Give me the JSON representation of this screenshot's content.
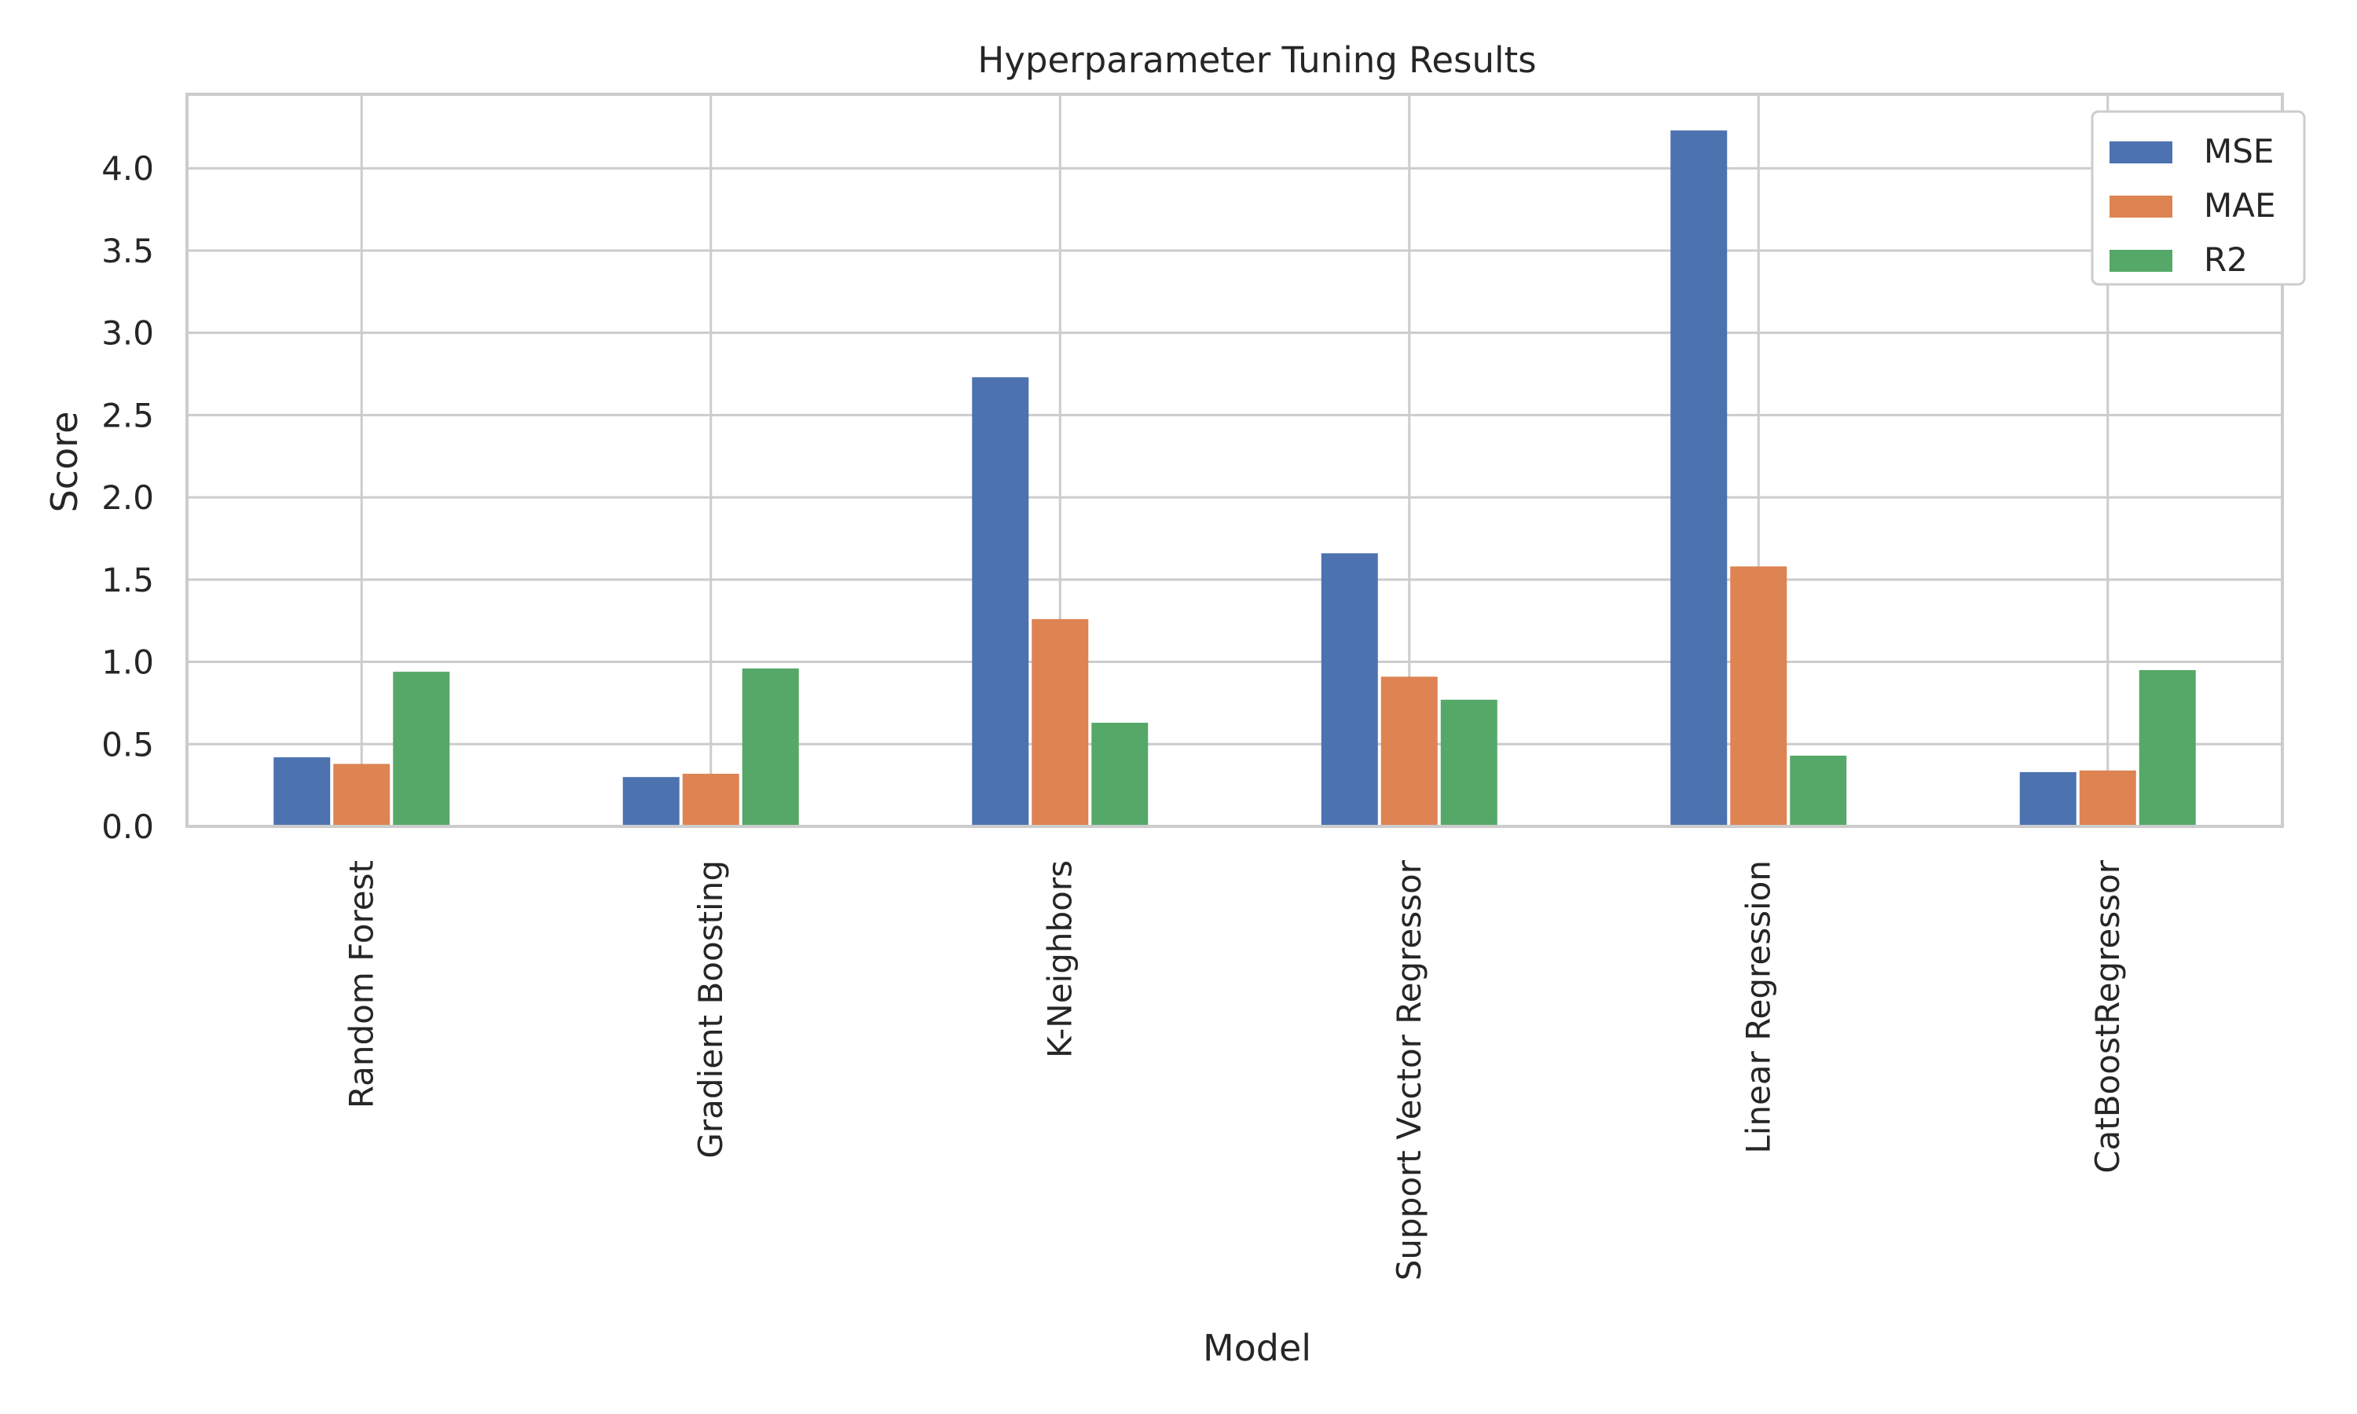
{
  "chart_data": {
    "type": "bar",
    "title": "Hyperparameter Tuning Results",
    "xlabel": "Model",
    "ylabel": "Score",
    "categories": [
      "Random Forest",
      "Gradient Boosting",
      "K-Neighbors",
      "Support Vector Regressor",
      "Linear Regression",
      "CatBoostRegressor"
    ],
    "series": [
      {
        "name": "MSE",
        "color": "#4c72b0",
        "values": [
          0.42,
          0.3,
          2.73,
          1.66,
          4.23,
          0.33
        ]
      },
      {
        "name": "MAE",
        "color": "#dd8452",
        "values": [
          0.38,
          0.32,
          1.26,
          0.91,
          1.58,
          0.34
        ]
      },
      {
        "name": "R2",
        "color": "#55a868",
        "values": [
          0.94,
          0.96,
          0.63,
          0.77,
          0.43,
          0.95
        ]
      }
    ],
    "yticks": [
      "0.0",
      "0.5",
      "1.0",
      "1.5",
      "2.0",
      "2.5",
      "3.0",
      "3.5",
      "4.0"
    ],
    "ylim": [
      0,
      4.45
    ],
    "grid": true,
    "legend_position": "top-right"
  }
}
